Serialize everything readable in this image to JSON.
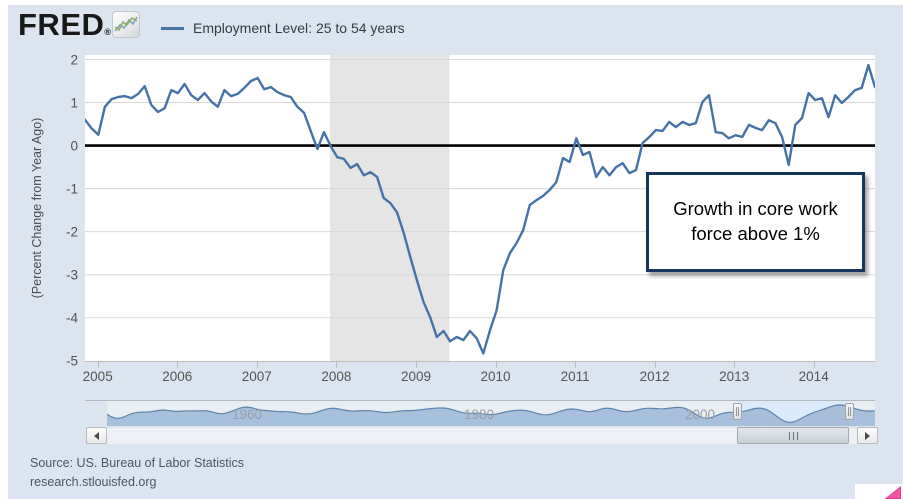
{
  "header": {
    "logo_text": "FRED",
    "logo_trademark": "®",
    "legend": {
      "label": "Employment Level: 25 to 54 years",
      "line_color": "#4572a7"
    }
  },
  "chart_data": {
    "type": "line",
    "title": "",
    "xlabel": "",
    "ylabel": "(Percent Change from Year Ago)",
    "yticks": [
      2,
      1,
      0,
      -1,
      -2,
      -3,
      -4,
      -5
    ],
    "xticks": [
      2005,
      2006,
      2007,
      2008,
      2009,
      2010,
      2011,
      2012,
      2013,
      2014
    ],
    "ylim": [
      -5.03,
      2.105
    ],
    "xlim": [
      2004.84,
      2014.77
    ],
    "grid": true,
    "zero_line": true,
    "recession_band": {
      "start": 2007.92,
      "end": 2009.42,
      "color": "#e5e5e5"
    },
    "series": [
      {
        "name": "Employment Level: 25 to 54 years",
        "color": "#4572a7",
        "x_start": 2004.84,
        "x_step": 0.083445,
        "values": [
          0.6,
          0.4,
          0.25,
          0.9,
          1.08,
          1.13,
          1.15,
          1.1,
          1.2,
          1.38,
          0.94,
          0.78,
          0.87,
          1.29,
          1.22,
          1.43,
          1.17,
          1.06,
          1.22,
          1.03,
          0.9,
          1.29,
          1.15,
          1.2,
          1.34,
          1.5,
          1.57,
          1.31,
          1.36,
          1.24,
          1.17,
          1.13,
          0.9,
          0.76,
          0.34,
          -0.08,
          0.31,
          -0.01,
          -0.27,
          -0.31,
          -0.52,
          -0.43,
          -0.69,
          -0.62,
          -0.73,
          -1.22,
          -1.34,
          -1.55,
          -2.03,
          -2.59,
          -3.13,
          -3.64,
          -3.99,
          -4.45,
          -4.31,
          -4.55,
          -4.45,
          -4.52,
          -4.31,
          -4.48,
          -4.83,
          -4.29,
          -3.83,
          -2.9,
          -2.5,
          -2.27,
          -1.97,
          -1.38,
          -1.27,
          -1.17,
          -1.03,
          -0.85,
          -0.29,
          -0.38,
          0.17,
          -0.22,
          -0.15,
          -0.73,
          -0.5,
          -0.69,
          -0.5,
          -0.41,
          -0.64,
          -0.57,
          0.06,
          0.2,
          0.36,
          0.34,
          0.55,
          0.43,
          0.55,
          0.48,
          0.52,
          1.01,
          1.17,
          0.31,
          0.29,
          0.17,
          0.24,
          0.2,
          0.48,
          0.41,
          0.36,
          0.59,
          0.52,
          0.2,
          -0.45,
          0.48,
          0.64,
          1.22,
          1.06,
          1.1,
          0.66,
          1.17,
          0.99,
          1.13,
          1.29,
          1.34,
          1.87,
          1.36
        ]
      }
    ],
    "annotation": {
      "text": "Growth in core work force above 1%"
    }
  },
  "navigator": {
    "labels": [
      {
        "text": "1960",
        "x": 247
      },
      {
        "text": "1980",
        "x": 479
      },
      {
        "text": "2000",
        "x": 700
      }
    ],
    "selection_start_x": 737,
    "selection_end_x": 849
  },
  "footer": {
    "source": "Source: US. Bureau of Labor Statistics",
    "url": "research.stlouisfed.org"
  },
  "colors": {
    "card_bg": "#dce5ef",
    "series_line": "#4572a7",
    "recession_band": "#e5e5e5",
    "gridline": "#d9d9d9",
    "zero_line": "#000000",
    "nav_area_fill": "#a3bdd9",
    "nav_area_line": "#5d85ac",
    "nav_bg": "#e9eef3",
    "nav_selected_bg": "#dcebfb",
    "annotation_border": "#17365d",
    "corner_mark_pink": "#f0569f"
  }
}
